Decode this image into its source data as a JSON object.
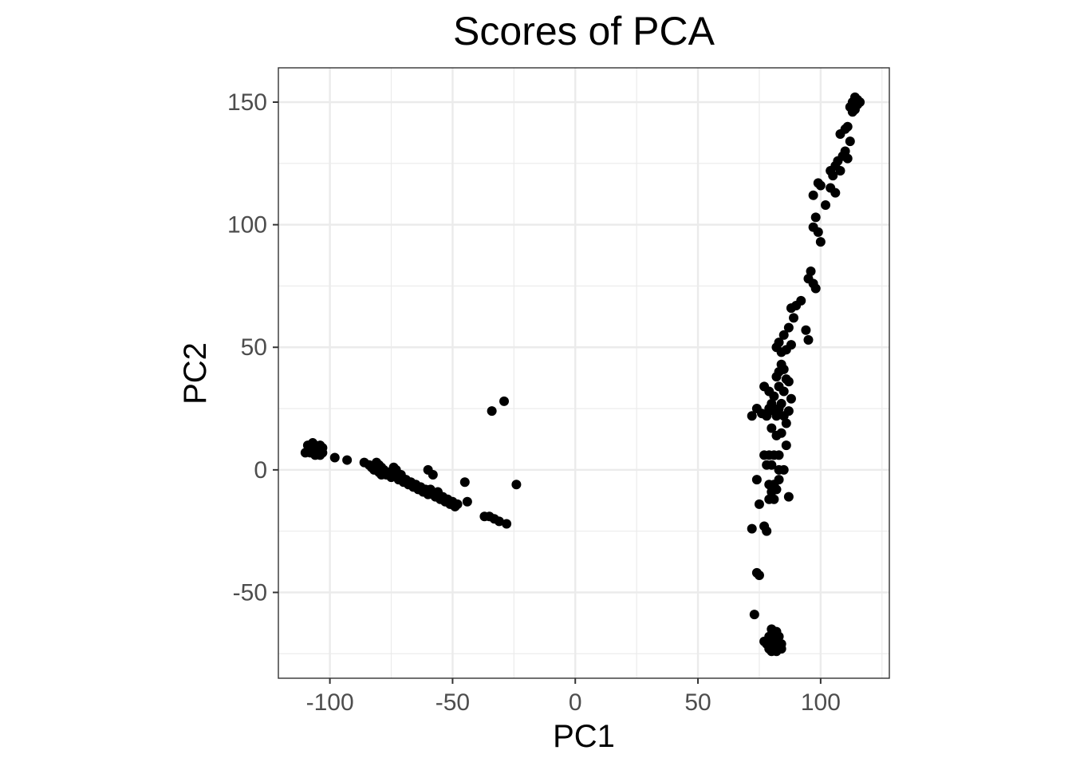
{
  "chart_data": {
    "type": "scatter",
    "title": "Scores of PCA",
    "xlabel": "PC1",
    "ylabel": "PC2",
    "xlim": [
      -121,
      128
    ],
    "ylim": [
      -85,
      164
    ],
    "x_ticks": [
      -100,
      -50,
      0,
      50,
      100
    ],
    "y_ticks": [
      -50,
      0,
      50,
      100,
      150
    ],
    "x_tick_labels": [
      "-100",
      "-50",
      "0",
      "50",
      "100"
    ],
    "y_tick_labels": [
      "-50",
      "0",
      "50",
      "100",
      "150"
    ],
    "grid": true,
    "point_color": "#000000",
    "points": [
      [
        -109,
        10
      ],
      [
        -108,
        9
      ],
      [
        -108,
        7
      ],
      [
        -107,
        11
      ],
      [
        -107,
        8
      ],
      [
        -106,
        10
      ],
      [
        -106,
        6
      ],
      [
        -105,
        9
      ],
      [
        -105,
        7
      ],
      [
        -104,
        10
      ],
      [
        -104,
        8
      ],
      [
        -104,
        6
      ],
      [
        -103,
        9
      ],
      [
        -103,
        7
      ],
      [
        -110,
        7
      ],
      [
        -106,
        8
      ],
      [
        -98,
        5
      ],
      [
        -93,
        4
      ],
      [
        -86,
        3
      ],
      [
        -84,
        2
      ],
      [
        -83,
        1
      ],
      [
        -82,
        0
      ],
      [
        -81,
        3
      ],
      [
        -80,
        2
      ],
      [
        -80,
        -1
      ],
      [
        -79,
        1
      ],
      [
        -79,
        -2
      ],
      [
        -78,
        0
      ],
      [
        -77,
        -2
      ],
      [
        -76,
        -1
      ],
      [
        -75,
        -3
      ],
      [
        -74,
        1
      ],
      [
        -74,
        -2
      ],
      [
        -73,
        0
      ],
      [
        -72,
        -3
      ],
      [
        -72,
        -4
      ],
      [
        -71,
        -2
      ],
      [
        -70,
        -5
      ],
      [
        -69,
        -4
      ],
      [
        -68,
        -6
      ],
      [
        -67,
        -5
      ],
      [
        -66,
        -7
      ],
      [
        -65,
        -6
      ],
      [
        -64,
        -8
      ],
      [
        -63,
        -7
      ],
      [
        -62,
        -9
      ],
      [
        -61,
        -8
      ],
      [
        -60,
        -10
      ],
      [
        -59,
        -8
      ],
      [
        -58,
        -10
      ],
      [
        -57,
        -11
      ],
      [
        -56,
        -9
      ],
      [
        -55,
        -12
      ],
      [
        -54,
        -11
      ],
      [
        -53,
        -13
      ],
      [
        -52,
        -12
      ],
      [
        -51,
        -14
      ],
      [
        -50,
        -13
      ],
      [
        -49,
        -15
      ],
      [
        -48,
        -14
      ],
      [
        -60,
        0
      ],
      [
        -58,
        -2
      ],
      [
        -45,
        -5
      ],
      [
        -44,
        -13
      ],
      [
        -37,
        -19
      ],
      [
        -35,
        -19
      ],
      [
        -33,
        -20
      ],
      [
        -31,
        -21
      ],
      [
        -28,
        -22
      ],
      [
        -24,
        -6
      ],
      [
        -34,
        24
      ],
      [
        -29,
        28
      ],
      [
        80,
        -65
      ],
      [
        81,
        -67
      ],
      [
        82,
        -66
      ],
      [
        79,
        -68
      ],
      [
        83,
        -68
      ],
      [
        80,
        -70
      ],
      [
        82,
        -70
      ],
      [
        84,
        -71
      ],
      [
        78,
        -71
      ],
      [
        81,
        -72
      ],
      [
        83,
        -72
      ],
      [
        79,
        -73
      ],
      [
        80,
        -74
      ],
      [
        82,
        -74
      ],
      [
        84,
        -73
      ],
      [
        77,
        -70
      ],
      [
        81,
        -69
      ],
      [
        82,
        -72
      ],
      [
        73,
        -59
      ],
      [
        74,
        -42
      ],
      [
        75,
        -43
      ],
      [
        72,
        -24
      ],
      [
        77,
        -23
      ],
      [
        78,
        -25
      ],
      [
        75,
        -14
      ],
      [
        79,
        -12
      ],
      [
        81,
        -12
      ],
      [
        87,
        -11
      ],
      [
        80,
        -9
      ],
      [
        82,
        -8
      ],
      [
        79,
        -6
      ],
      [
        81,
        -6
      ],
      [
        83,
        -4
      ],
      [
        74,
        -4
      ],
      [
        78,
        2
      ],
      [
        80,
        2
      ],
      [
        83,
        0
      ],
      [
        85,
        0
      ],
      [
        77,
        6
      ],
      [
        79,
        6
      ],
      [
        81,
        6
      ],
      [
        83,
        6
      ],
      [
        86,
        10
      ],
      [
        72,
        22
      ],
      [
        74,
        25
      ],
      [
        76,
        23
      ],
      [
        78,
        22
      ],
      [
        79,
        25
      ],
      [
        80,
        27
      ],
      [
        81,
        24
      ],
      [
        82,
        22
      ],
      [
        83,
        25
      ],
      [
        84,
        27
      ],
      [
        85,
        22
      ],
      [
        87,
        24
      ],
      [
        77,
        34
      ],
      [
        79,
        32
      ],
      [
        81,
        30
      ],
      [
        83,
        34
      ],
      [
        85,
        32
      ],
      [
        87,
        36
      ],
      [
        88,
        29
      ],
      [
        80,
        17
      ],
      [
        82,
        14
      ],
      [
        84,
        15
      ],
      [
        86,
        19
      ],
      [
        82,
        38
      ],
      [
        83,
        40
      ],
      [
        84,
        43
      ],
      [
        85,
        41
      ],
      [
        86,
        37
      ],
      [
        82,
        50
      ],
      [
        83,
        52
      ],
      [
        85,
        55
      ],
      [
        84,
        48
      ],
      [
        86,
        49
      ],
      [
        88,
        51
      ],
      [
        87,
        58
      ],
      [
        89,
        62
      ],
      [
        88,
        66
      ],
      [
        90,
        67
      ],
      [
        92,
        69
      ],
      [
        95,
        53
      ],
      [
        94,
        57
      ],
      [
        95,
        78
      ],
      [
        96,
        81
      ],
      [
        97,
        76
      ],
      [
        98,
        74
      ],
      [
        97,
        99
      ],
      [
        98,
        103
      ],
      [
        99,
        97
      ],
      [
        100,
        93
      ],
      [
        97,
        112
      ],
      [
        99,
        117
      ],
      [
        100,
        116
      ],
      [
        102,
        108
      ],
      [
        104,
        115
      ],
      [
        106,
        113
      ],
      [
        104,
        122
      ],
      [
        105,
        120
      ],
      [
        106,
        124
      ],
      [
        107,
        126
      ],
      [
        108,
        122
      ],
      [
        109,
        128
      ],
      [
        110,
        130
      ],
      [
        111,
        127
      ],
      [
        112,
        134
      ],
      [
        108,
        137
      ],
      [
        110,
        139
      ],
      [
        111,
        140
      ],
      [
        112,
        148
      ],
      [
        113,
        150
      ],
      [
        114,
        152
      ],
      [
        115,
        149
      ],
      [
        116,
        150
      ],
      [
        114,
        147
      ],
      [
        113,
        146
      ],
      [
        115,
        151
      ]
    ]
  }
}
